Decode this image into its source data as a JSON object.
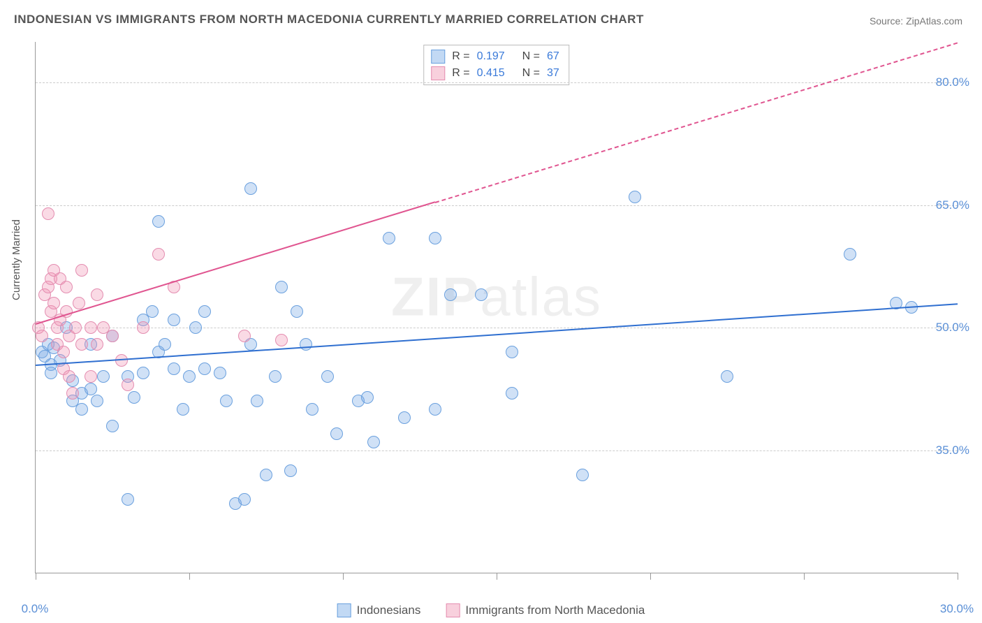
{
  "title": "INDONESIAN VS IMMIGRANTS FROM NORTH MACEDONIA CURRENTLY MARRIED CORRELATION CHART",
  "source": "Source: ZipAtlas.com",
  "ylabel": "Currently Married",
  "watermark_bold": "ZIP",
  "watermark_rest": "atlas",
  "chart": {
    "type": "scatter",
    "background_color": "#ffffff",
    "grid_color": "#cccccc",
    "axis_color": "#999999",
    "label_color": "#5a8fd6",
    "xlim": [
      0,
      30
    ],
    "ylim": [
      20,
      85
    ],
    "y_ticks": [
      35.0,
      50.0,
      65.0,
      80.0
    ],
    "y_tick_labels": [
      "35.0%",
      "50.0%",
      "65.0%",
      "80.0%"
    ],
    "x_ticks": [
      0,
      5,
      10,
      15,
      20,
      25,
      30
    ],
    "x_axis_labels": [
      {
        "pos": 0.0,
        "text": "0.0%"
      },
      {
        "pos": 30.0,
        "text": "30.0%"
      }
    ],
    "marker_radius": 9,
    "marker_stroke_width": 1.5,
    "series": [
      {
        "name": "Indonesians",
        "fill": "rgba(120,170,230,0.35)",
        "stroke": "#6aa0de",
        "trend": {
          "x1": 0,
          "y1": 45.5,
          "x2": 30,
          "y2": 53.0,
          "color": "#2f6fd0",
          "width": 2,
          "dashed_from_x": null
        },
        "points": [
          [
            0.2,
            47
          ],
          [
            0.3,
            46.5
          ],
          [
            0.4,
            48
          ],
          [
            0.5,
            45.5
          ],
          [
            0.6,
            47.5
          ],
          [
            0.8,
            46
          ],
          [
            0.5,
            44.5
          ],
          [
            1.0,
            50
          ],
          [
            1.2,
            41
          ],
          [
            1.5,
            42
          ],
          [
            1.2,
            43.5
          ],
          [
            1.5,
            40
          ],
          [
            1.8,
            42.5
          ],
          [
            2.0,
            41
          ],
          [
            1.8,
            48
          ],
          [
            2.2,
            44
          ],
          [
            2.5,
            49
          ],
          [
            2.5,
            38
          ],
          [
            3.0,
            29
          ],
          [
            3.0,
            44
          ],
          [
            3.2,
            41.5
          ],
          [
            3.5,
            51
          ],
          [
            3.5,
            44.5
          ],
          [
            3.8,
            52
          ],
          [
            4.0,
            63
          ],
          [
            4.0,
            47
          ],
          [
            4.2,
            48
          ],
          [
            4.5,
            45
          ],
          [
            4.5,
            51
          ],
          [
            4.8,
            40
          ],
          [
            5.0,
            44
          ],
          [
            5.2,
            50
          ],
          [
            5.5,
            52
          ],
          [
            5.5,
            45
          ],
          [
            6.0,
            44.5
          ],
          [
            6.2,
            41
          ],
          [
            6.5,
            28.5
          ],
          [
            6.8,
            29
          ],
          [
            7.0,
            67
          ],
          [
            7.0,
            48
          ],
          [
            7.2,
            41
          ],
          [
            7.5,
            32
          ],
          [
            7.8,
            44
          ],
          [
            8.0,
            55
          ],
          [
            8.3,
            32.5
          ],
          [
            8.5,
            52
          ],
          [
            8.8,
            48
          ],
          [
            9.0,
            40
          ],
          [
            9.5,
            44
          ],
          [
            9.8,
            37
          ],
          [
            10.5,
            41
          ],
          [
            10.8,
            41.5
          ],
          [
            11.0,
            36
          ],
          [
            11.5,
            61
          ],
          [
            12.0,
            39
          ],
          [
            13.0,
            40
          ],
          [
            13.0,
            61
          ],
          [
            13.5,
            54
          ],
          [
            14.5,
            54
          ],
          [
            15.5,
            42
          ],
          [
            15.5,
            47
          ],
          [
            17.8,
            32
          ],
          [
            19.5,
            66
          ],
          [
            22.5,
            44
          ],
          [
            26.5,
            59
          ],
          [
            28.5,
            52.5
          ],
          [
            28.0,
            53
          ]
        ]
      },
      {
        "name": "Immigrants from North Macedonia",
        "fill": "rgba(240,150,180,0.35)",
        "stroke": "#e48db0",
        "trend": {
          "x1": 0,
          "y1": 50.5,
          "x2": 30,
          "y2": 85.0,
          "color": "#e05590",
          "width": 2,
          "dashed_from_x": 13.0
        },
        "points": [
          [
            0.1,
            50
          ],
          [
            0.2,
            49
          ],
          [
            0.3,
            54
          ],
          [
            0.4,
            55
          ],
          [
            0.4,
            64
          ],
          [
            0.5,
            56
          ],
          [
            0.5,
            52
          ],
          [
            0.6,
            57
          ],
          [
            0.6,
            53
          ],
          [
            0.7,
            50
          ],
          [
            0.7,
            48
          ],
          [
            0.8,
            56
          ],
          [
            0.8,
            51
          ],
          [
            0.9,
            47
          ],
          [
            0.9,
            45
          ],
          [
            1.0,
            55
          ],
          [
            1.0,
            52
          ],
          [
            1.1,
            44
          ],
          [
            1.1,
            49
          ],
          [
            1.2,
            42
          ],
          [
            1.3,
            50
          ],
          [
            1.4,
            53
          ],
          [
            1.5,
            57
          ],
          [
            1.5,
            48
          ],
          [
            1.8,
            50
          ],
          [
            1.8,
            44
          ],
          [
            2.0,
            48
          ],
          [
            2.0,
            54
          ],
          [
            2.2,
            50
          ],
          [
            2.5,
            49
          ],
          [
            2.8,
            46
          ],
          [
            3.0,
            43
          ],
          [
            3.5,
            50
          ],
          [
            4.0,
            59
          ],
          [
            4.5,
            55
          ],
          [
            6.8,
            49
          ],
          [
            8.0,
            48.5
          ]
        ]
      }
    ]
  },
  "legend_top": {
    "rows": [
      {
        "swatch_fill": "rgba(120,170,230,0.45)",
        "swatch_stroke": "#6aa0de",
        "r_label": "R =",
        "r_value": "0.197",
        "n_label": "N =",
        "n_value": "67"
      },
      {
        "swatch_fill": "rgba(240,150,180,0.45)",
        "swatch_stroke": "#e48db0",
        "r_label": "R =",
        "r_value": "0.415",
        "n_label": "N =",
        "n_value": "37"
      }
    ],
    "value_color": "#3a7ad9",
    "label_color": "#444"
  },
  "legend_bottom": {
    "items": [
      {
        "swatch_fill": "rgba(120,170,230,0.45)",
        "swatch_stroke": "#6aa0de",
        "label": "Indonesians"
      },
      {
        "swatch_fill": "rgba(240,150,180,0.45)",
        "swatch_stroke": "#e48db0",
        "label": "Immigrants from North Macedonia"
      }
    ]
  }
}
